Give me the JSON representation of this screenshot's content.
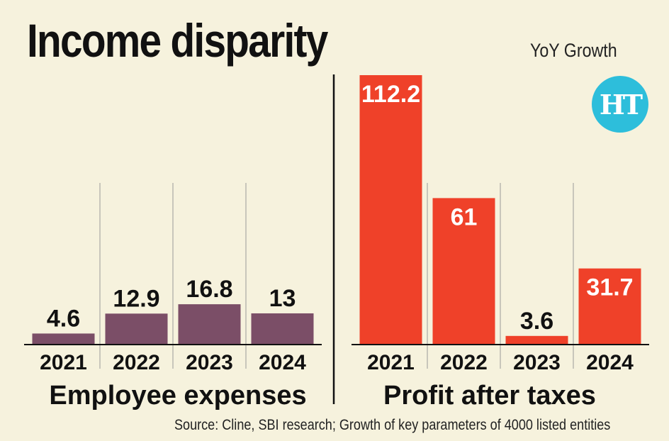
{
  "title": "Income disparity",
  "subtitle": "YoY Growth",
  "logo_text": "HT",
  "source": "Source: Cline, SBI research; Growth of key parameters of 4000 listed entities",
  "colors": {
    "employee": "#7b4e67",
    "profit": "#ef4129",
    "background": "#f6f2dd",
    "logo": "#2dbedb"
  },
  "chart_data": [
    {
      "type": "bar",
      "title": "Employee expenses",
      "categories": [
        "2021",
        "2022",
        "2023",
        "2024"
      ],
      "values": [
        4.6,
        12.9,
        16.8,
        13
      ],
      "labels": [
        "4.6",
        "12.9",
        "16.8",
        "13"
      ],
      "ylim": [
        0,
        112.2
      ],
      "xlabel": "",
      "ylabel": "YoY Growth"
    },
    {
      "type": "bar",
      "title": "Profit after taxes",
      "categories": [
        "2021",
        "2022",
        "2023",
        "2024"
      ],
      "values": [
        112.2,
        61,
        3.6,
        31.7
      ],
      "labels": [
        "112.2",
        "61",
        "3.6",
        "31.7"
      ],
      "ylim": [
        0,
        112.2
      ],
      "xlabel": "",
      "ylabel": "YoY Growth"
    }
  ]
}
